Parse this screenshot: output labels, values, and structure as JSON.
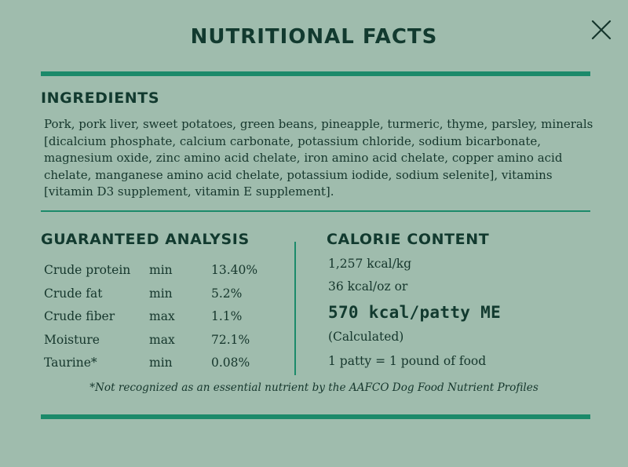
{
  "title": "NUTRITIONAL FACTS",
  "close_icon": "close-icon",
  "colors": {
    "background": "#9fbcad",
    "accent": "#1c8a6a",
    "text": "#15362c"
  },
  "ingredients": {
    "heading": "INGREDIENTS",
    "text": "Pork, pork liver, sweet potatoes, green beans, pineapple, turmeric, thyme, parsley, minerals [dicalcium phosphate, calcium carbonate, potassium chloride, sodium bicarbonate, magnesium oxide, zinc amino acid chelate, iron amino acid chelate, copper amino acid chelate, manganese amino acid chelate, potassium iodide, sodium selenite], vitamins [vitamin D3 supplement, vitamin E supplement]."
  },
  "guaranteed_analysis": {
    "heading": "GUARANTEED ANALYSIS",
    "rows": [
      {
        "name": "Crude protein",
        "modifier": "min",
        "value": "13.40%"
      },
      {
        "name": "Crude fat",
        "modifier": "min",
        "value": "5.2%"
      },
      {
        "name": "Crude fiber",
        "modifier": "max",
        "value": "1.1%"
      },
      {
        "name": "Moisture",
        "modifier": "max",
        "value": "72.1%"
      },
      {
        "name": "Taurine*",
        "modifier": "min",
        "value": "0.08%"
      }
    ]
  },
  "calorie_content": {
    "heading": "CALORIE CONTENT",
    "line1": "1,257 kcal/kg",
    "line2": "36 kcal/oz or",
    "highlight": "570 kcal/patty ME",
    "calculated": "(Calculated)",
    "patty_note": "1 patty = 1 pound of food"
  },
  "footnote": "*Not recognized as an essential nutrient by the AAFCO Dog Food Nutrient Profiles"
}
